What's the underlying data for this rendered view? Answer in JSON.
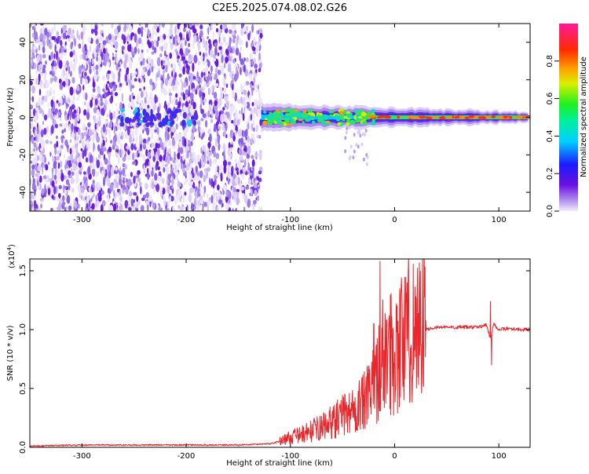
{
  "title": "C2E5.2025.074.08.02.G26",
  "colors": {
    "snr_line": "#e8262b",
    "spec_purple": "#7a1de0",
    "spec_green": "#2fe65a",
    "spec_red": "#ff2020"
  },
  "chart_data": [
    {
      "type": "heatmap",
      "xlabel": "Height of straight line (km)",
      "ylabel": "Frequency (Hz)",
      "xlim": [
        -350,
        130
      ],
      "ylim": [
        -50,
        50
      ],
      "xticks": [
        -300,
        -200,
        -100,
        0,
        100
      ],
      "xtick_labels": [
        "-300",
        "-200",
        "-100",
        "0",
        "100"
      ],
      "yticks": [
        -40,
        -20,
        0,
        20,
        40
      ],
      "ytick_labels": [
        "-40",
        "-20",
        "0",
        "20",
        "40"
      ],
      "colorbar": {
        "label": "Normalized spectral amplitude",
        "range": [
          0.0,
          1.0
        ],
        "ticks": [
          0.0,
          0.2,
          0.4,
          0.6,
          0.8
        ],
        "tick_labels": [
          "0.0",
          "0.2",
          "0.4",
          "0.6",
          "0.8"
        ],
        "colormap": "rainbow (purple → blue → cyan → green → yellow → orange → red → magenta)"
      },
      "regions": [
        {
          "x_range": [
            -350,
            -128
          ],
          "freq_range": [
            -50,
            50
          ],
          "amplitude": 0.1,
          "description": "broadband low-amplitude noise"
        },
        {
          "x_range": [
            -128,
            130
          ],
          "freq_range": [
            -6,
            6
          ],
          "amplitude": 0.4,
          "description": "narrow band near 0 Hz"
        },
        {
          "x_range": [
            -20,
            130
          ],
          "freq_range": [
            -2,
            2
          ],
          "amplitude": 0.9,
          "description": "strong carrier line at 0 Hz"
        }
      ]
    },
    {
      "type": "line",
      "xlabel": "Height of straight line (km)",
      "ylabel": "SNR (10 * v/v)",
      "y_multiplier_label": "(x10",
      "y_multiplier_exp": "4",
      "xlim": [
        -350,
        130
      ],
      "ylim": [
        0,
        1.6
      ],
      "xticks": [
        -300,
        -200,
        -100,
        0,
        100
      ],
      "xtick_labels": [
        "-300",
        "-200",
        "-100",
        "0",
        "100"
      ],
      "yticks": [
        0.0,
        0.5,
        1.0,
        1.5
      ],
      "ytick_labels": [
        "0.0",
        "0.5",
        "1.0",
        "1.5"
      ],
      "series": [
        {
          "x": [
            -350,
            -300,
            -250,
            -200,
            -150,
            -120,
            -110,
            -100,
            -90,
            -80,
            -70,
            -60,
            -50,
            -40,
            -30,
            -25,
            -20,
            -15,
            -12,
            -10,
            -5,
            0,
            5,
            10,
            15,
            20,
            25,
            30,
            40,
            60,
            80,
            88,
            92,
            95,
            100,
            110,
            120,
            130
          ],
          "y": [
            0.01,
            0.02,
            0.02,
            0.02,
            0.02,
            0.03,
            0.05,
            0.08,
            0.1,
            0.13,
            0.16,
            0.2,
            0.25,
            0.3,
            0.35,
            0.4,
            0.5,
            0.62,
            0.7,
            0.72,
            0.75,
            0.78,
            0.84,
            0.88,
            0.92,
            0.96,
            0.99,
            1.0,
            1.02,
            1.02,
            1.02,
            1.04,
            0.92,
            1.05,
            1.0,
            1.01,
            1.0,
            1.0
          ],
          "spikes": [
            {
              "x": -14,
              "y": 1.58
            },
            {
              "x": -20,
              "y": 1.05
            },
            {
              "x": -5,
              "y": 1.12
            },
            {
              "x": 92,
              "y": 1.24
            },
            {
              "x": 93,
              "y": 0.7
            }
          ]
        }
      ]
    }
  ]
}
